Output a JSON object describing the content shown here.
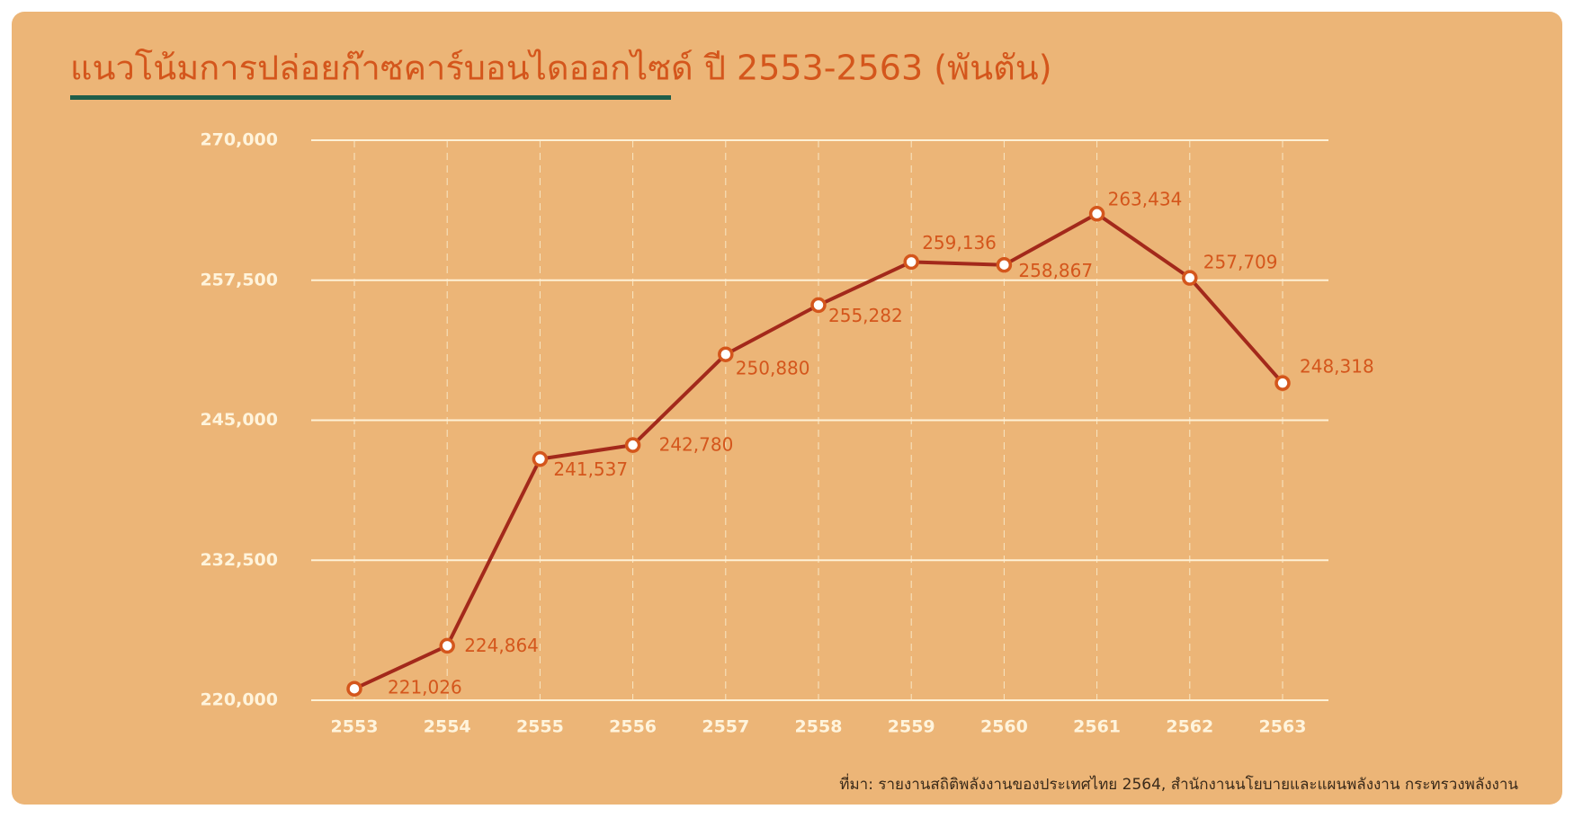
{
  "chart_data": {
    "type": "line",
    "title": "แนวโน้มการปล่อยก๊าซคาร์บอนไดออกไซด์ ปี 2553-2563 (พันตัน)",
    "source": "ที่มา: รายงานสถิติพลังงานของประเทศไทย 2564, สำนักงานนโยบายและแผนพลังงาน กระทรวงพลังงาน",
    "categories": [
      "2553",
      "2554",
      "2555",
      "2556",
      "2557",
      "2558",
      "2559",
      "2560",
      "2561",
      "2562",
      "2563"
    ],
    "values": [
      221026,
      224864,
      241537,
      242780,
      250880,
      255282,
      259136,
      258867,
      263434,
      257709,
      248318
    ],
    "value_labels": [
      "221,026",
      "224,864",
      "241,537",
      "242,780",
      "250,880",
      "255,282",
      "259,136",
      "258,867",
      "263,434",
      "257,709",
      "248,318"
    ],
    "color": "#a3291b",
    "marker_color": "#d4561c",
    "ylim": [
      220000,
      270000
    ],
    "yticks": [
      {
        "value": 220000,
        "label": "220,000"
      },
      {
        "value": 232500,
        "label": "232,500"
      },
      {
        "value": 245000,
        "label": "245,000"
      },
      {
        "value": 257500,
        "label": "257,500"
      },
      {
        "value": 270000,
        "label": "270,000"
      }
    ],
    "grid": true
  }
}
